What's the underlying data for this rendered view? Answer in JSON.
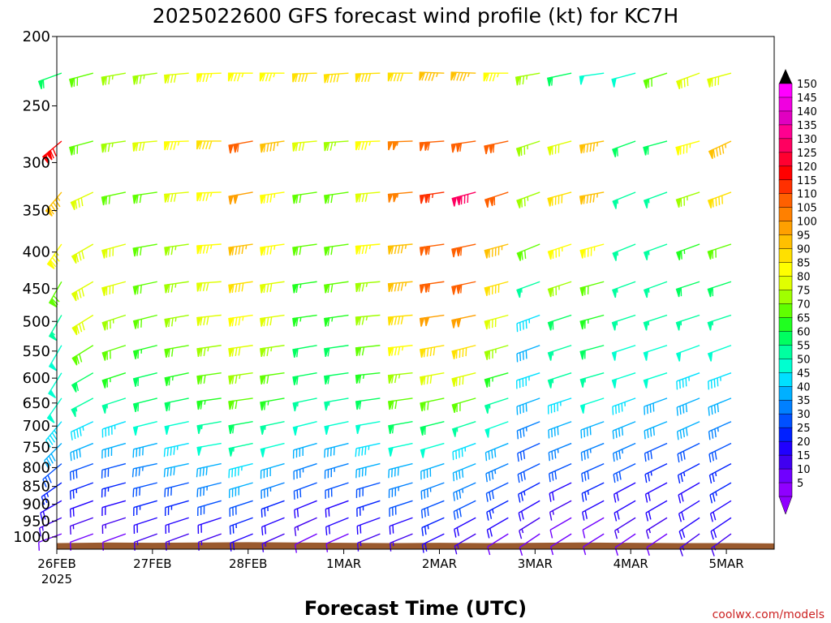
{
  "chart_data": {
    "type": "wind_barbs",
    "title": "2025022600 GFS forecast wind profile (kt) for KC7H",
    "xlabel": "Forecast Time (UTC)",
    "ylabel": "",
    "credit": "coolwx.com/models",
    "x_range": [
      "2025-02-26T00",
      "2025-03-05T12"
    ],
    "x_tick_labels": [
      {
        "label": "26FEB",
        "sub": "2025",
        "day": 0
      },
      {
        "label": "27FEB",
        "sub": "",
        "day": 1
      },
      {
        "label": "28FEB",
        "sub": "",
        "day": 2
      },
      {
        "label": "1MAR",
        "sub": "",
        "day": 3
      },
      {
        "label": "2MAR",
        "sub": "",
        "day": 4
      },
      {
        "label": "3MAR",
        "sub": "",
        "day": 5
      },
      {
        "label": "4MAR",
        "sub": "",
        "day": 6
      },
      {
        "label": "5MAR",
        "sub": "",
        "day": 7
      }
    ],
    "y_tick_labels": [
      {
        "label": "200",
        "hpa": 200
      },
      {
        "label": "250",
        "hpa": 250
      },
      {
        "label": "300",
        "hpa": 300
      },
      {
        "label": "350",
        "hpa": 350
      },
      {
        "label": "400",
        "hpa": 400
      },
      {
        "label": "450",
        "hpa": 450
      },
      {
        "label": "500",
        "hpa": 500
      },
      {
        "label": "550",
        "hpa": 550
      },
      {
        "label": "600",
        "hpa": 600
      },
      {
        "label": "650",
        "hpa": 650
      },
      {
        "label": "700",
        "hpa": 700
      },
      {
        "label": "750",
        "hpa": 750
      },
      {
        "label": "800",
        "hpa": 800
      },
      {
        "label": "850",
        "hpa": 850
      },
      {
        "label": "900",
        "hpa": 900
      },
      {
        "label": "950",
        "hpa": 950
      },
      {
        "label": "1000",
        "hpa": 1000
      }
    ],
    "y_scale": "log-pressure (hPa), inverted",
    "y_range_hpa": [
      200,
      1040
    ],
    "colorbar": {
      "labels": [
        "150",
        "145",
        "140",
        "135",
        "130",
        "125",
        "120",
        "115",
        "110",
        "105",
        "100",
        "95",
        "90",
        "85",
        "80",
        "75",
        "70",
        "65",
        "60",
        "55",
        "50",
        "45",
        "40",
        "35",
        "30",
        "25",
        "20",
        "15",
        "10",
        "5"
      ],
      "colors": [
        "#ff00ff",
        "#f000e0",
        "#e000c0",
        "#ff0090",
        "#ff0060",
        "#ff0030",
        "#ff0000",
        "#ff3000",
        "#ff6000",
        "#ff8000",
        "#ffa000",
        "#ffc000",
        "#ffe000",
        "#ffff00",
        "#e0ff00",
        "#a0ff00",
        "#60ff00",
        "#20ff20",
        "#00ff60",
        "#00ffa0",
        "#00ffd0",
        "#00e0ff",
        "#00b0ff",
        "#0080ff",
        "#0050ff",
        "#0020ff",
        "#2000ff",
        "#4000f0",
        "#7000ff",
        "#9000ff"
      ]
    },
    "levels_hpa": [
      225,
      280,
      330,
      390,
      440,
      490,
      540,
      590,
      640,
      690,
      740,
      790,
      840,
      890,
      940,
      990
    ],
    "series": [
      {
        "hpa": 225,
        "speed": [
          62,
          68,
          74,
          74,
          78,
          84,
          86,
          86,
          88,
          92,
          88,
          90,
          96,
          96,
          86,
          74,
          62,
          48,
          50,
          72,
          80,
          80
        ],
        "dir": [
          250,
          255,
          260,
          262,
          265,
          268,
          270,
          270,
          268,
          266,
          268,
          270,
          272,
          272,
          270,
          260,
          258,
          262,
          255,
          252,
          250,
          255
        ]
      },
      {
        "hpa": 280,
        "speed": [
          118,
          68,
          76,
          78,
          84,
          90,
          110,
          96,
          80,
          76,
          84,
          104,
          112,
          112,
          108,
          74,
          80,
          96,
          58,
          62,
          84,
          96
        ],
        "dir": [
          230,
          255,
          262,
          265,
          268,
          270,
          260,
          262,
          265,
          266,
          268,
          268,
          266,
          262,
          258,
          252,
          255,
          260,
          250,
          255,
          255,
          245
        ]
      },
      {
        "hpa": 330,
        "speed": [
          94,
          80,
          72,
          68,
          78,
          84,
          100,
          86,
          68,
          70,
          82,
          104,
          114,
          132,
          108,
          74,
          90,
          96,
          56,
          56,
          74,
          88
        ],
        "dir": [
          220,
          245,
          258,
          262,
          265,
          268,
          260,
          262,
          262,
          262,
          265,
          265,
          262,
          255,
          252,
          250,
          255,
          260,
          248,
          250,
          252,
          250
        ]
      },
      {
        "hpa": 390,
        "speed": [
          86,
          82,
          78,
          70,
          76,
          84,
          96,
          86,
          68,
          70,
          84,
          96,
          108,
          112,
          96,
          70,
          86,
          86,
          56,
          56,
          66,
          72
        ],
        "dir": [
          215,
          240,
          255,
          260,
          262,
          266,
          262,
          262,
          262,
          262,
          265,
          265,
          262,
          258,
          255,
          248,
          252,
          255,
          248,
          250,
          250,
          252
        ]
      },
      {
        "hpa": 440,
        "speed": [
          70,
          82,
          78,
          70,
          74,
          82,
          88,
          82,
          66,
          68,
          76,
          96,
          108,
          110,
          88,
          54,
          76,
          72,
          54,
          54,
          60,
          62
        ],
        "dir": [
          210,
          240,
          255,
          258,
          262,
          266,
          262,
          262,
          262,
          262,
          265,
          265,
          262,
          258,
          255,
          250,
          252,
          255,
          250,
          250,
          252,
          252
        ]
      },
      {
        "hpa": 490,
        "speed": [
          56,
          78,
          74,
          70,
          74,
          80,
          86,
          78,
          64,
          66,
          74,
          92,
          100,
          98,
          80,
          46,
          60,
          66,
          54,
          54,
          56,
          56
        ],
        "dir": [
          210,
          238,
          252,
          256,
          260,
          264,
          262,
          262,
          262,
          262,
          265,
          265,
          262,
          258,
          255,
          250,
          252,
          255,
          252,
          252,
          252,
          252
        ]
      },
      {
        "hpa": 540,
        "speed": [
          52,
          70,
          70,
          66,
          70,
          76,
          80,
          74,
          60,
          62,
          70,
          84,
          90,
          90,
          74,
          40,
          56,
          62,
          50,
          50,
          50,
          48
        ],
        "dir": [
          210,
          238,
          252,
          256,
          260,
          262,
          262,
          262,
          260,
          262,
          264,
          264,
          260,
          256,
          254,
          250,
          252,
          255,
          252,
          252,
          250,
          250
        ]
      },
      {
        "hpa": 590,
        "speed": [
          50,
          62,
          64,
          62,
          66,
          70,
          76,
          70,
          58,
          58,
          66,
          76,
          82,
          80,
          66,
          44,
          54,
          56,
          48,
          48,
          46,
          44
        ],
        "dir": [
          212,
          240,
          252,
          256,
          258,
          262,
          262,
          262,
          260,
          262,
          264,
          264,
          260,
          256,
          254,
          252,
          252,
          254,
          252,
          252,
          250,
          250
        ]
      },
      {
        "hpa": 640,
        "speed": [
          48,
          54,
          56,
          58,
          60,
          64,
          70,
          64,
          54,
          54,
          60,
          68,
          72,
          68,
          56,
          40,
          46,
          48,
          44,
          42,
          42,
          40
        ],
        "dir": [
          215,
          242,
          252,
          256,
          258,
          262,
          262,
          260,
          258,
          260,
          262,
          262,
          258,
          254,
          252,
          250,
          252,
          252,
          250,
          250,
          248,
          248
        ]
      },
      {
        "hpa": 690,
        "speed": [
          44,
          46,
          46,
          50,
          52,
          56,
          62,
          56,
          48,
          48,
          52,
          58,
          60,
          56,
          48,
          36,
          40,
          42,
          40,
          38,
          38,
          36
        ],
        "dir": [
          220,
          245,
          252,
          256,
          258,
          260,
          260,
          258,
          256,
          258,
          260,
          260,
          256,
          252,
          250,
          248,
          250,
          250,
          248,
          248,
          246,
          246
        ]
      },
      {
        "hpa": 740,
        "speed": [
          38,
          38,
          38,
          42,
          44,
          48,
          54,
          48,
          40,
          40,
          44,
          48,
          50,
          46,
          40,
          30,
          34,
          36,
          34,
          32,
          32,
          30
        ],
        "dir": [
          225,
          248,
          254,
          256,
          258,
          260,
          258,
          256,
          254,
          256,
          258,
          258,
          254,
          250,
          248,
          246,
          248,
          248,
          246,
          246,
          244,
          244
        ]
      },
      {
        "hpa": 790,
        "speed": [
          30,
          30,
          32,
          36,
          38,
          42,
          46,
          40,
          34,
          34,
          38,
          40,
          42,
          40,
          34,
          28,
          28,
          30,
          28,
          26,
          26,
          26
        ],
        "dir": [
          230,
          250,
          255,
          258,
          258,
          258,
          256,
          254,
          252,
          254,
          256,
          256,
          252,
          248,
          246,
          244,
          246,
          246,
          244,
          244,
          242,
          242
        ]
      },
      {
        "hpa": 840,
        "speed": [
          24,
          24,
          26,
          30,
          32,
          34,
          38,
          34,
          28,
          28,
          32,
          34,
          36,
          34,
          28,
          24,
          22,
          24,
          22,
          22,
          22,
          24
        ],
        "dir": [
          235,
          250,
          255,
          256,
          256,
          256,
          254,
          252,
          250,
          252,
          254,
          254,
          250,
          246,
          244,
          242,
          244,
          244,
          242,
          242,
          240,
          240
        ]
      },
      {
        "hpa": 890,
        "speed": [
          18,
          20,
          22,
          24,
          26,
          28,
          30,
          26,
          22,
          22,
          26,
          28,
          30,
          28,
          24,
          20,
          16,
          18,
          18,
          20,
          20,
          22
        ],
        "dir": [
          240,
          250,
          254,
          254,
          254,
          254,
          252,
          250,
          248,
          250,
          252,
          252,
          248,
          244,
          242,
          240,
          242,
          242,
          240,
          240,
          238,
          238
        ]
      },
      {
        "hpa": 940,
        "speed": [
          14,
          14,
          16,
          18,
          20,
          22,
          24,
          20,
          16,
          18,
          20,
          22,
          24,
          22,
          18,
          14,
          12,
          12,
          14,
          16,
          18,
          20
        ],
        "dir": [
          245,
          250,
          252,
          252,
          252,
          252,
          250,
          248,
          246,
          248,
          250,
          250,
          246,
          242,
          240,
          238,
          240,
          240,
          238,
          238,
          236,
          236
        ]
      },
      {
        "hpa": 990,
        "speed": [
          10,
          10,
          12,
          14,
          16,
          16,
          18,
          14,
          12,
          12,
          14,
          16,
          18,
          16,
          12,
          10,
          8,
          8,
          10,
          12,
          14,
          16
        ],
        "dir": [
          250,
          250,
          250,
          250,
          250,
          250,
          248,
          246,
          244,
          246,
          248,
          248,
          244,
          240,
          238,
          236,
          238,
          238,
          236,
          236,
          234,
          234
        ]
      }
    ],
    "x_days": [
      0.05,
      0.38,
      0.72,
      1.05,
      1.38,
      1.72,
      2.05,
      2.38,
      2.72,
      3.05,
      3.38,
      3.72,
      4.05,
      4.38,
      4.72,
      5.05,
      5.38,
      5.72,
      6.05,
      6.38,
      6.72,
      7.05
    ],
    "terrain_hpa": [
      1020,
      1018,
      1019,
      1018,
      1017,
      1018,
      1019,
      1020,
      1019,
      1020,
      1019,
      1018,
      1019,
      1020,
      1020,
      1021
    ]
  }
}
